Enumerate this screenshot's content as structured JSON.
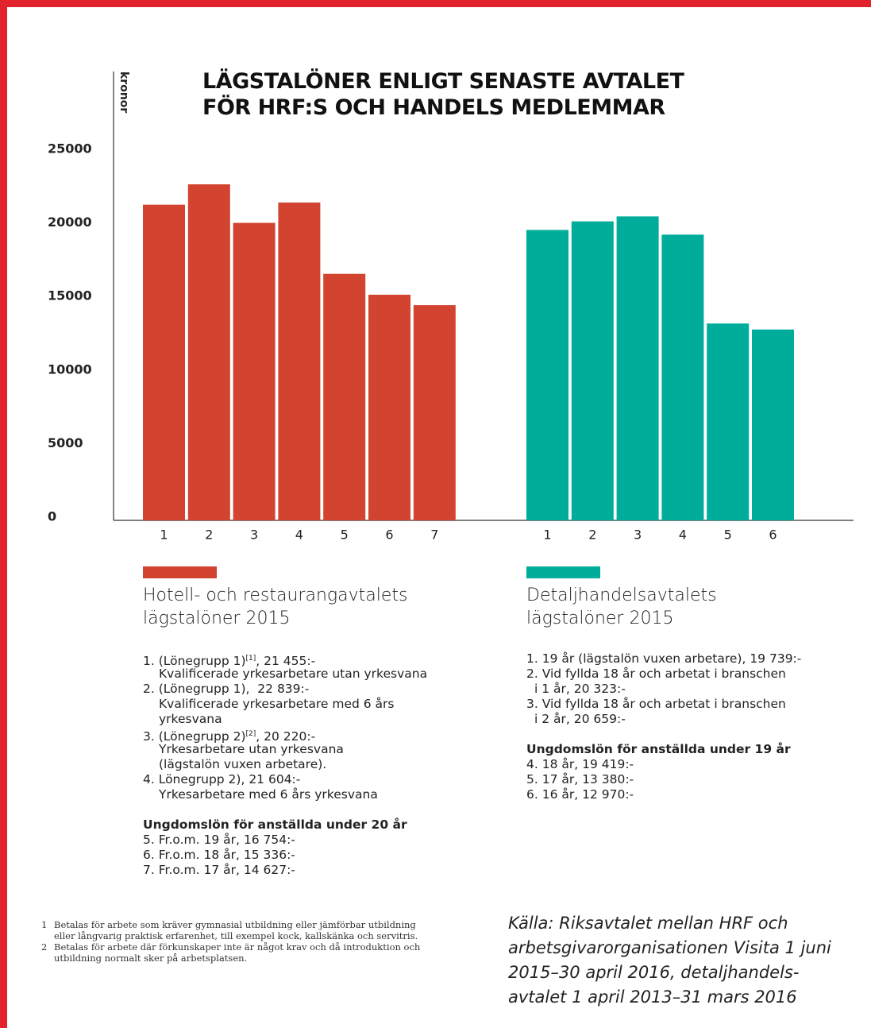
{
  "chart_data": {
    "type": "bar",
    "title": "LÄGSTALÖNER ENLIGT SENASTE AVTALET FÖR HRF:S OCH HANDELS MEDLEMMAR",
    "y_label": "kronor",
    "ylim": [
      0,
      25000
    ],
    "yticks": [
      0,
      5000,
      10000,
      15000,
      20000,
      25000
    ],
    "grid": false,
    "series": [
      {
        "name": "Hotell- och restaurangavtalets lägstalöner 2015",
        "color": "#d24430",
        "categories": [
          "1",
          "2",
          "3",
          "4",
          "5",
          "6",
          "7"
        ],
        "values": [
          21455,
          22839,
          20220,
          21604,
          16754,
          15336,
          14627
        ]
      },
      {
        "name": "Detaljhandelsavtalets lägstalöner 2015",
        "color": "#00ad9a",
        "categories": [
          "1",
          "2",
          "3",
          "4",
          "5",
          "6"
        ],
        "values": [
          19739,
          20323,
          20659,
          19419,
          13380,
          12970
        ]
      }
    ]
  },
  "legend_notes": [
    {
      "items": [
        [
          {
            "text": "1. (Lönegrupp 1)",
            "sup": "[1]",
            "rest": ", 21 455:-"
          },
          "Kvalificerade yrkesarbetare utan yrkesvana"
        ],
        [
          "2. (Lönegrupp 1),  22 839:-",
          "Kvalificerade yrkesarbetare med 6 års",
          "yrkesvana"
        ],
        [
          {
            "text": "3. (Lönegrupp 2)",
            "sup": "[2]",
            "rest": ", 20 220:-"
          },
          "Yrkesarbetare utan yrkesvana",
          "(lägstalön vuxen arbetare)."
        ],
        [
          "4. Lönegrupp 2), 21 604:-",
          "Yrkesarbetare med 6 års yrkesvana"
        ]
      ],
      "heading": "Ungdomslön för anställda under 20 år",
      "youth": [
        "5. Fr.o.m. 19 år, 16 754:-",
        "6. Fr.o.m. 18 år, 15 336:-",
        "7. Fr.o.m. 17 år, 14 627:-"
      ]
    },
    {
      "items": [
        [
          "1. 19 år (lägstalön vuxen arbetare), 19 739:-"
        ],
        [
          "2. Vid fyllda 18 år och arbetat i branschen",
          "i 1 år, 20 323:-"
        ],
        [
          "3. Vid fyllda 18 år och arbetat i branschen",
          "i 2 år, 20 659:-"
        ]
      ],
      "heading": "Ungdomslön för anställda under 19 år",
      "youth": [
        "4. 18 år, 19 419:-",
        "5. 17 år, 13 380:-",
        "6. 16 år, 12 970:-"
      ]
    }
  ],
  "footnotes": [
    {
      "number": "1",
      "lines": [
        "Betalas för arbete som kräver gymnasial utbildning eller jämförbar utbildning",
        "eller långvarig praktisk erfarenhet, till exempel kock, kallskänka och servitris."
      ]
    },
    {
      "number": "2",
      "lines": [
        "Betalas för arbete där förkunskaper inte är något krav och då introduktion och",
        "utbildning normalt sker på arbetsplatsen."
      ]
    }
  ],
  "source": [
    "Källa: Riksavtalet mellan HRF och",
    "arbetsgivarorganisationen Visita 1 juni",
    "2015–30 april 2016, detaljhandels-",
    "avtalet 1 april 2013–31 mars 2016"
  ]
}
